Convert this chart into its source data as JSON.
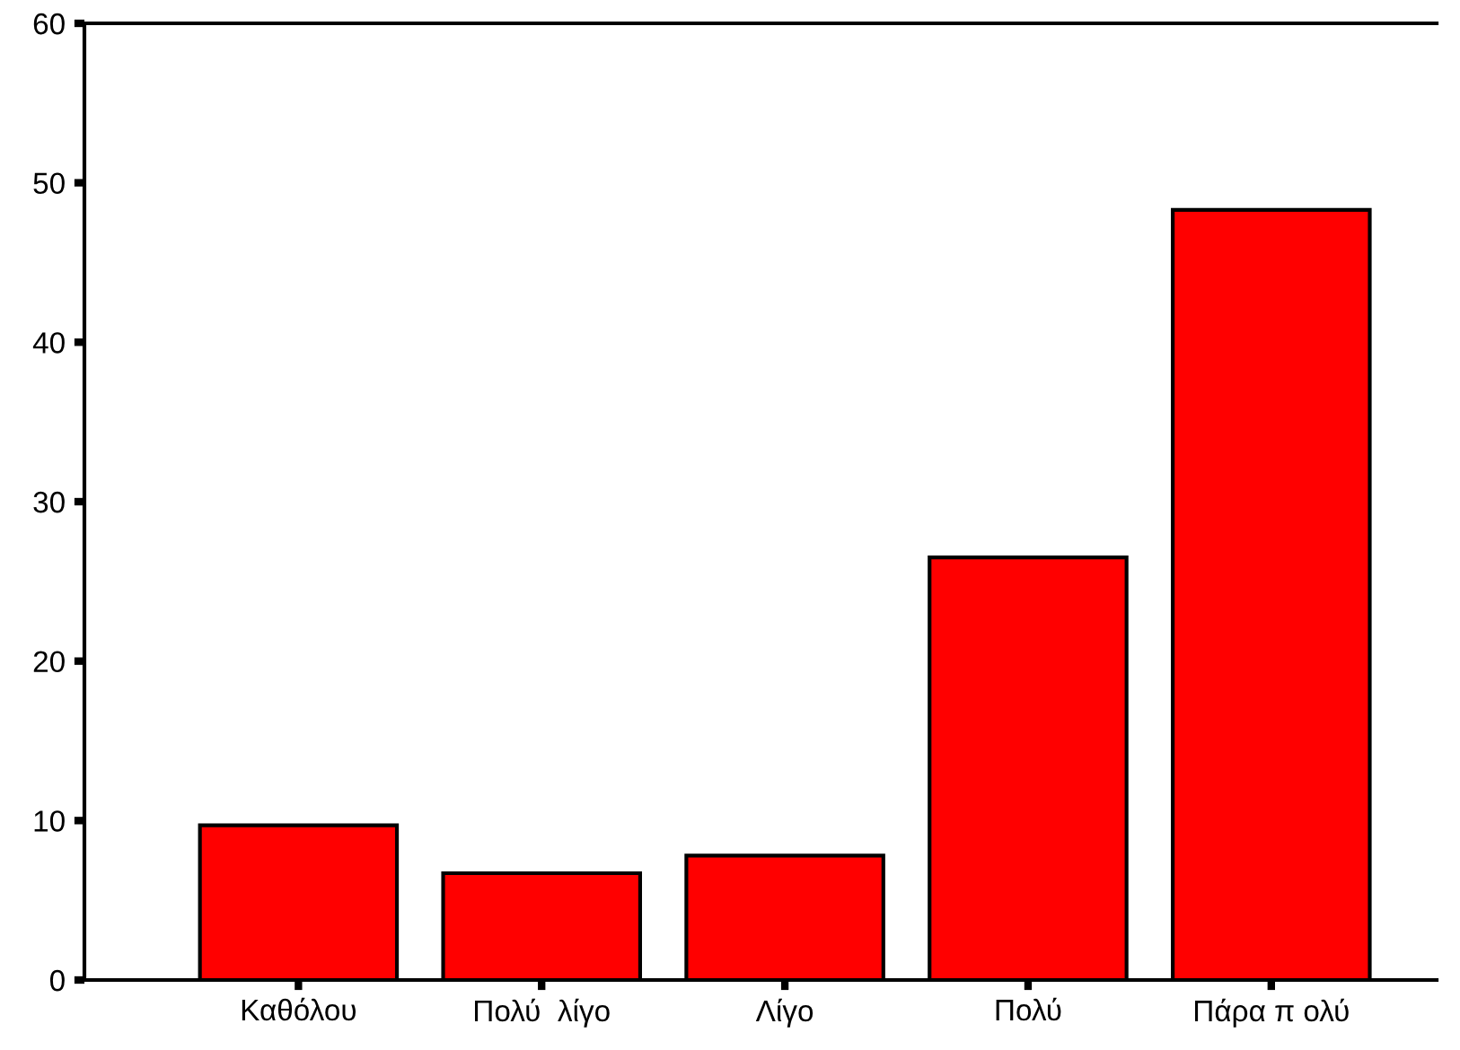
{
  "chart_data": {
    "type": "bar",
    "categories": [
      "Καθόλου",
      "Πολύ  λίγο",
      "Λίγο",
      "Πολύ",
      "Πάρα π ολύ"
    ],
    "values": [
      9.7,
      6.7,
      7.8,
      26.5,
      48.3
    ],
    "color": "#ff0000",
    "ylim": [
      0,
      60
    ],
    "yticks": [
      0,
      10,
      20,
      30,
      40,
      50,
      60
    ],
    "grid": false
  }
}
